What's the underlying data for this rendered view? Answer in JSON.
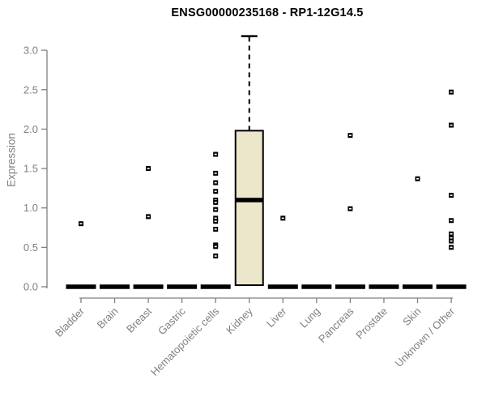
{
  "chart_data": {
    "type": "boxplot",
    "title": "ENSG00000235168 - RP1-12G14.5",
    "ylabel": "Expression",
    "xlabel": "",
    "ylim": [
      0.0,
      3.2
    ],
    "yticks": [
      0.0,
      0.5,
      1.0,
      1.5,
      2.0,
      2.5,
      3.0
    ],
    "grid": false,
    "legend": "none",
    "categories": [
      "Bladder",
      "Brain",
      "Breast",
      "Gastric",
      "Hematopoietic cells",
      "Kidney",
      "Liver",
      "Lung",
      "Pancreas",
      "Prostate",
      "Skin",
      "Unknown / Other"
    ],
    "boxes": [
      {
        "category": "Bladder",
        "q1": 0,
        "median": 0,
        "q3": 0,
        "whisker_low": 0,
        "whisker_high": 0,
        "outliers": [
          0.8
        ]
      },
      {
        "category": "Brain",
        "q1": 0,
        "median": 0,
        "q3": 0,
        "whisker_low": 0,
        "whisker_high": 0,
        "outliers": []
      },
      {
        "category": "Breast",
        "q1": 0,
        "median": 0,
        "q3": 0,
        "whisker_low": 0,
        "whisker_high": 0,
        "outliers": [
          1.5,
          0.89
        ]
      },
      {
        "category": "Gastric",
        "q1": 0,
        "median": 0,
        "q3": 0,
        "whisker_low": 0,
        "whisker_high": 0,
        "outliers": []
      },
      {
        "category": "Hematopoietic cells",
        "q1": 0,
        "median": 0,
        "q3": 0,
        "whisker_low": 0,
        "whisker_high": 0,
        "outliers": [
          1.68,
          1.44,
          1.32,
          1.21,
          1.1,
          1.07,
          0.98,
          0.87,
          0.83,
          0.73,
          0.53,
          0.51,
          0.39
        ]
      },
      {
        "category": "Kidney",
        "q1": 0.02,
        "median": 1.1,
        "q3": 1.98,
        "whisker_low": 0.02,
        "whisker_high": 3.18,
        "outliers": []
      },
      {
        "category": "Liver",
        "q1": 0,
        "median": 0,
        "q3": 0,
        "whisker_low": 0,
        "whisker_high": 0,
        "outliers": [
          0.87
        ]
      },
      {
        "category": "Lung",
        "q1": 0,
        "median": 0,
        "q3": 0,
        "whisker_low": 0,
        "whisker_high": 0,
        "outliers": []
      },
      {
        "category": "Pancreas",
        "q1": 0,
        "median": 0,
        "q3": 0,
        "whisker_low": 0,
        "whisker_high": 0,
        "outliers": [
          1.92,
          0.99
        ]
      },
      {
        "category": "Prostate",
        "q1": 0,
        "median": 0,
        "q3": 0,
        "whisker_low": 0,
        "whisker_high": 0,
        "outliers": []
      },
      {
        "category": "Skin",
        "q1": 0,
        "median": 0,
        "q3": 0,
        "whisker_low": 0,
        "whisker_high": 0,
        "outliers": [
          1.37
        ]
      },
      {
        "category": "Unknown / Other",
        "q1": 0,
        "median": 0,
        "q3": 0,
        "whisker_low": 0,
        "whisker_high": 0,
        "outliers": [
          2.47,
          2.05,
          1.16,
          0.84,
          0.67,
          0.62,
          0.58,
          0.5
        ]
      }
    ],
    "colors": {
      "title": "#000000",
      "axis": "#808080",
      "tick_label": "#808080",
      "box_fill": "#ECE7CB",
      "box_border": "#000000",
      "median": "#000000",
      "whisker": "#000000",
      "outlier": "#000000",
      "background": "#ffffff"
    }
  }
}
